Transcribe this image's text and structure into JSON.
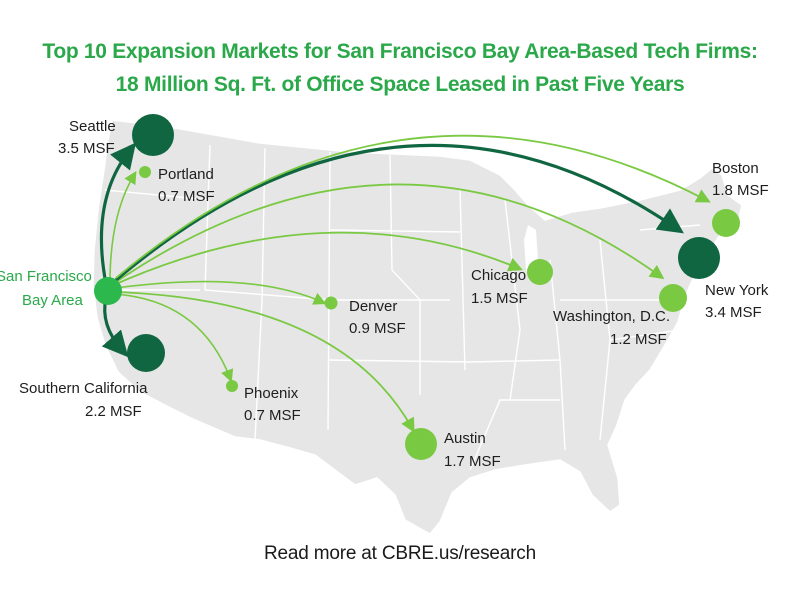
{
  "title": {
    "line1": "Top 10 Expansion Markets for San Francisco Bay Area-Based Tech Firms:",
    "line2": "18 Million Sq. Ft. of Office Space Leased in Past Five Years"
  },
  "origin": {
    "name_line1": "San Francisco",
    "name_line2": "Bay Area",
    "color": "#2db84d"
  },
  "colors": {
    "dark_green": "#0f6640",
    "light_green": "#7ac943",
    "map_fill": "#e6e6e6",
    "map_border": "#ffffff"
  },
  "markets": [
    {
      "key": "seattle",
      "name": "Seattle",
      "value": "3.5 MSF",
      "msf": 3.5,
      "tier": "dark"
    },
    {
      "key": "portland",
      "name": "Portland",
      "value": "0.7 MSF",
      "msf": 0.7,
      "tier": "light"
    },
    {
      "key": "southern-california",
      "name": "Southern California",
      "value": "2.2 MSF",
      "msf": 2.2,
      "tier": "dark"
    },
    {
      "key": "phoenix",
      "name": "Phoenix",
      "value": "0.7 MSF",
      "msf": 0.7,
      "tier": "light"
    },
    {
      "key": "denver",
      "name": "Denver",
      "value": "0.9 MSF",
      "msf": 0.9,
      "tier": "light"
    },
    {
      "key": "austin",
      "name": "Austin",
      "value": "1.7 MSF",
      "msf": 1.7,
      "tier": "light"
    },
    {
      "key": "chicago",
      "name": "Chicago",
      "value": "1.5 MSF",
      "msf": 1.5,
      "tier": "light"
    },
    {
      "key": "washington-dc",
      "name": "Washington, D.C.",
      "value": "1.2 MSF",
      "msf": 1.2,
      "tier": "light"
    },
    {
      "key": "new-york",
      "name": "New York",
      "value": "3.4 MSF",
      "msf": 3.4,
      "tier": "dark"
    },
    {
      "key": "boston",
      "name": "Boston",
      "value": "1.8 MSF",
      "msf": 1.8,
      "tier": "light"
    }
  ],
  "footer": "Read more at CBRE.us/research"
}
